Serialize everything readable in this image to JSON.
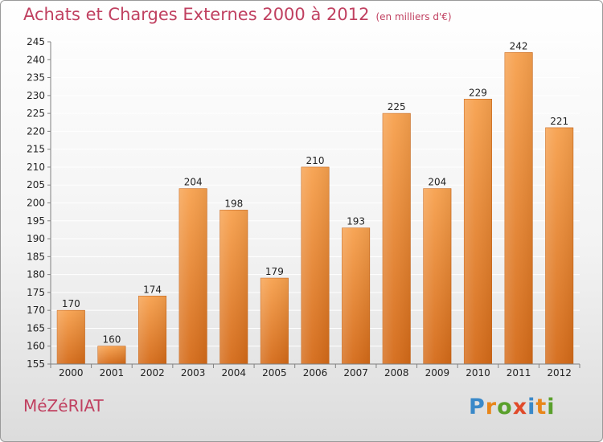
{
  "header": {
    "title": "Achats et Charges Externes 2000 à 2012",
    "unit": "(en milliers d'€)"
  },
  "footer": {
    "commune": "MéZéRIAT",
    "logo_letters": [
      "P",
      "r",
      "o",
      "x",
      "i",
      "t",
      "i"
    ]
  },
  "colors": {
    "title": "#c04060",
    "bar_top": "#f7a14e",
    "bar_bottom": "#d46a18",
    "gridline": "#ffffff",
    "axis": "#808080"
  },
  "chart_data": {
    "type": "bar",
    "title": "Achats et Charges Externes 2000 à 2012",
    "subtitle": "(en milliers d'€)",
    "categories": [
      "2000",
      "2001",
      "2002",
      "2003",
      "2004",
      "2005",
      "2006",
      "2007",
      "2008",
      "2009",
      "2010",
      "2011",
      "2012"
    ],
    "values": [
      170,
      160,
      174,
      204,
      198,
      179,
      210,
      193,
      225,
      204,
      229,
      242,
      221
    ],
    "ylim": [
      155,
      245
    ],
    "yticks": [
      155,
      160,
      165,
      170,
      175,
      180,
      185,
      190,
      195,
      200,
      205,
      210,
      215,
      220,
      225,
      230,
      235,
      240,
      245
    ],
    "xlabel": "",
    "ylabel": "",
    "grid": true,
    "data_labels": true
  }
}
